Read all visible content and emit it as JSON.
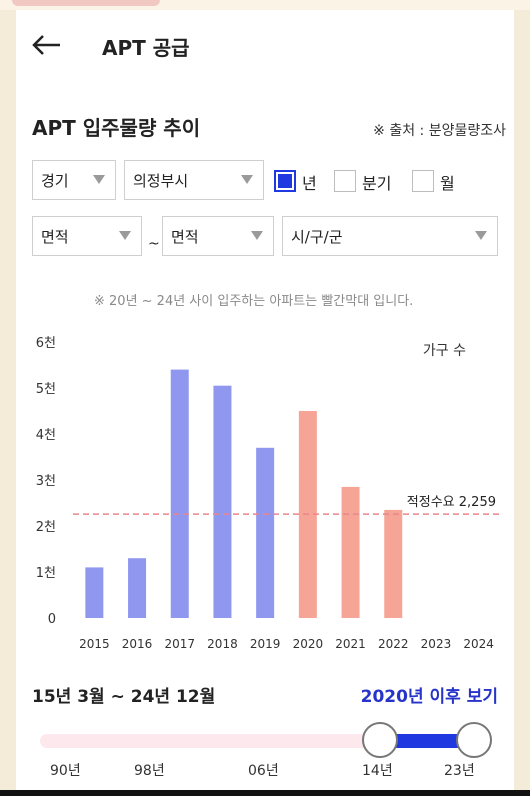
{
  "header": {
    "title": "APT 공급"
  },
  "section": {
    "title": "APT 입주물량 추이",
    "source": "※ 출처 : 분양물량조사"
  },
  "filters": {
    "region": "경기",
    "city": "의정부시",
    "period_options": [
      {
        "label": "년",
        "checked": true
      },
      {
        "label": "분기",
        "checked": false
      },
      {
        "label": "월",
        "checked": false
      }
    ],
    "area_from": "면적",
    "tilde": "~",
    "area_to": "면적",
    "district": "시/구/군"
  },
  "note": "※ 20년 ~ 24년 사이 입주하는 아파트는 빨간막대 입니다.",
  "legend": "가구 수",
  "chart_data": {
    "type": "bar",
    "categories": [
      "2015",
      "2016",
      "2017",
      "2018",
      "2019",
      "2020",
      "2021",
      "2022",
      "2023",
      "2024"
    ],
    "values": [
      1100,
      1300,
      5400,
      5050,
      3700,
      4500,
      2850,
      2350,
      0,
      0
    ],
    "colors": [
      "#8f97ef",
      "#8f97ef",
      "#8f97ef",
      "#8f97ef",
      "#8f97ef",
      "#f6a496",
      "#f6a496",
      "#f6a496",
      "#f6a496",
      "#f6a496"
    ],
    "yticks": [
      0,
      1000,
      2000,
      3000,
      4000,
      5000,
      6000
    ],
    "ytick_labels": [
      "0",
      "1천",
      "2천",
      "3천",
      "4천",
      "5천",
      "6천"
    ],
    "ylim": [
      0,
      6000
    ],
    "reference_line": {
      "value": 2259,
      "label": "적정수요 2,259",
      "color": "#e8868a"
    }
  },
  "range": {
    "period": "15년 3월 ~ 24년 12월",
    "after_link": "2020년 이후 보기",
    "ticks": [
      "90년",
      "98년",
      "06년",
      "14년",
      "23년"
    ],
    "selected": [
      2014,
      2023
    ]
  },
  "colors": {
    "accent": "#1f38e0",
    "link": "#2734c9",
    "past_bar": "#8f97ef",
    "future_bar": "#f6a496"
  }
}
